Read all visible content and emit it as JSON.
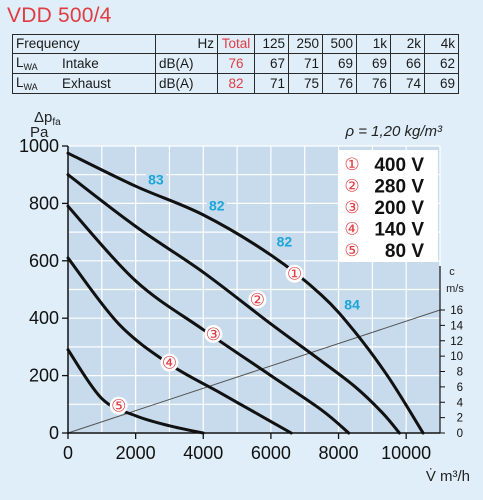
{
  "title": "VDD 500/4",
  "table": {
    "header": [
      "Frequency",
      "Hz",
      "Total",
      "125",
      "250",
      "500",
      "1k",
      "2k",
      "4k"
    ],
    "rows": [
      {
        "label_main": "L",
        "label_sub": "WA",
        "name": "Intake",
        "unit": "dB(A)",
        "total": "76",
        "values": [
          "67",
          "71",
          "69",
          "69",
          "66",
          "62"
        ]
      },
      {
        "label_main": "L",
        "label_sub": "WA",
        "name": "Exhaust",
        "unit": "dB(A)",
        "total": "82",
        "values": [
          "71",
          "75",
          "76",
          "76",
          "74",
          "69"
        ]
      }
    ]
  },
  "chart_data": {
    "type": "line",
    "title": "",
    "ylabel_line1": "Δp",
    "ylabel_sub": "fa",
    "ylabel_line2": "Pa",
    "xlabel": "V̇ m³/h",
    "density_note": "ρ = 1,20 kg/m³",
    "xlim": [
      0,
      11000
    ],
    "ylim": [
      0,
      1000
    ],
    "xticks": [
      "0",
      "2000",
      "4000",
      "6000",
      "8000",
      "10000"
    ],
    "yticks": [
      "0",
      "200",
      "400",
      "600",
      "800",
      "1000"
    ],
    "secondary_axis": {
      "label_top": "c",
      "label_unit": "m/s",
      "ticks": [
        "0",
        "2",
        "4",
        "6",
        "8",
        "10",
        "12",
        "14",
        "16"
      ]
    },
    "legend": [
      {
        "mark": "①",
        "label": "400 V"
      },
      {
        "mark": "②",
        "label": "280 V"
      },
      {
        "mark": "③",
        "label": "200 V"
      },
      {
        "mark": "④",
        "label": "140 V"
      },
      {
        "mark": "⑤",
        "label": "80 V"
      }
    ],
    "series": [
      {
        "mark": "①",
        "x": [
          0,
          2000,
          4000,
          6000,
          7500,
          8500,
          9500,
          10500
        ],
        "y": [
          975,
          860,
          760,
          620,
          480,
          350,
          190,
          0
        ]
      },
      {
        "mark": "②",
        "x": [
          0,
          2000,
          4000,
          6000,
          7500,
          8500,
          9300,
          9800
        ],
        "y": [
          900,
          720,
          560,
          380,
          250,
          160,
          70,
          0
        ]
      },
      {
        "mark": "③",
        "x": [
          0,
          2000,
          4000,
          6000,
          7500,
          8300
        ],
        "y": [
          790,
          530,
          360,
          200,
          80,
          0
        ]
      },
      {
        "mark": "④",
        "x": [
          0,
          1500,
          3000,
          4500,
          6000,
          6600
        ],
        "y": [
          610,
          380,
          240,
          140,
          40,
          0
        ]
      },
      {
        "mark": "⑤",
        "x": [
          0,
          1000,
          2000,
          3000,
          4000
        ],
        "y": [
          290,
          120,
          60,
          25,
          0
        ]
      }
    ],
    "system_line": {
      "x": [
        0,
        11000
      ],
      "c": [
        0,
        16
      ]
    },
    "efficiency_labels": [
      {
        "text": "83",
        "x": 2600,
        "y": 865
      },
      {
        "text": "82",
        "x": 4400,
        "y": 775
      },
      {
        "text": "82",
        "x": 6400,
        "y": 650
      },
      {
        "text": "84",
        "x": 8400,
        "y": 430
      }
    ],
    "curve_markers": [
      {
        "mark": "①",
        "x": 6700,
        "y": 555
      },
      {
        "mark": "②",
        "x": 5600,
        "y": 465
      },
      {
        "mark": "③",
        "x": 4300,
        "y": 345
      },
      {
        "mark": "④",
        "x": 3000,
        "y": 245
      },
      {
        "mark": "⑤",
        "x": 1500,
        "y": 95
      }
    ],
    "colors": {
      "accent": "#e03c43",
      "eff": "#1aa6d8",
      "curve": "#111111",
      "grid": "#ffffff"
    }
  }
}
